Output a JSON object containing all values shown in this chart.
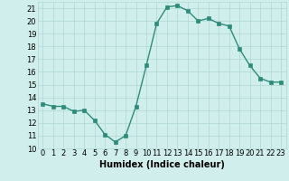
{
  "x": [
    0,
    1,
    2,
    3,
    4,
    5,
    6,
    7,
    8,
    9,
    10,
    11,
    12,
    13,
    14,
    15,
    16,
    17,
    18,
    19,
    20,
    21,
    22,
    23
  ],
  "y": [
    13.5,
    13.3,
    13.3,
    12.9,
    13.0,
    12.2,
    11.1,
    10.5,
    11.0,
    13.3,
    16.5,
    19.8,
    21.1,
    21.2,
    20.8,
    20.0,
    20.2,
    19.8,
    19.6,
    17.8,
    16.5,
    15.5,
    15.2,
    15.2
  ],
  "line_color": "#2e8b7a",
  "marker_color": "#2e8b7a",
  "bg_color": "#d0eeeb",
  "grid_color": "#b0d8d4",
  "xlabel": "Humidex (Indice chaleur)",
  "ylim": [
    10,
    21.5
  ],
  "xlim": [
    -0.5,
    23.5
  ],
  "yticks": [
    10,
    11,
    12,
    13,
    14,
    15,
    16,
    17,
    18,
    19,
    20,
    21
  ],
  "xticks": [
    0,
    1,
    2,
    3,
    4,
    5,
    6,
    7,
    8,
    9,
    10,
    11,
    12,
    13,
    14,
    15,
    16,
    17,
    18,
    19,
    20,
    21,
    22,
    23
  ],
  "xlabel_fontsize": 7,
  "tick_fontsize": 6,
  "line_width": 1.0,
  "marker_size": 2.5
}
